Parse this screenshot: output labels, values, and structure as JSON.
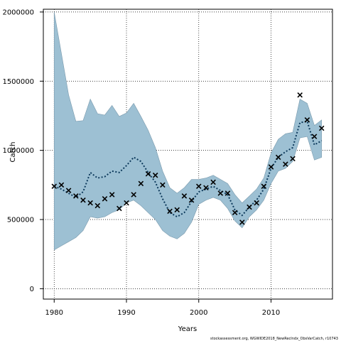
{
  "chart_data": {
    "type": "line",
    "title": "",
    "xlabel": "Years",
    "ylabel": "Catch",
    "xlim": [
      1978.5,
      2018.5
    ],
    "ylim": [
      -75000,
      2020000
    ],
    "grid": true,
    "x_ticks": [
      1980,
      1990,
      2000,
      2010
    ],
    "y_ticks": [
      0,
      500000,
      1000000,
      1500000,
      2000000
    ],
    "x_tick_labels": [
      "1980",
      "1990",
      "2000",
      "2010"
    ],
    "y_tick_labels": [
      "0",
      "500000",
      "1000000",
      "1500000",
      "2000000"
    ],
    "colors": {
      "band": "#9dc0d3",
      "band_edge": "#7a9aad",
      "estimate": "#0d3a5c",
      "observed": "#000000"
    },
    "series": [
      {
        "style": "confidence-band",
        "x": [
          1980,
          1981,
          1982,
          1983,
          1984,
          1985,
          1986,
          1987,
          1988,
          1989,
          1990,
          1991,
          1992,
          1993,
          1994,
          1995,
          1996,
          1997,
          1998,
          1999,
          2000,
          2001,
          2002,
          2003,
          2004,
          2005,
          2006,
          2007,
          2008,
          2009,
          2010,
          2011,
          2012,
          2013,
          2014,
          2015,
          2016,
          2017
        ],
        "lower": [
          280000,
          310000,
          340000,
          370000,
          420000,
          520000,
          510000,
          520000,
          550000,
          570000,
          620000,
          640000,
          600000,
          550000,
          500000,
          420000,
          380000,
          360000,
          400000,
          480000,
          610000,
          640000,
          660000,
          640000,
          580000,
          490000,
          440000,
          520000,
          570000,
          640000,
          760000,
          850000,
          870000,
          920000,
          1090000,
          1100000,
          930000,
          950000
        ],
        "upper": [
          2000000,
          1700000,
          1400000,
          1210000,
          1215000,
          1370000,
          1265000,
          1255000,
          1325000,
          1245000,
          1270000,
          1340000,
          1245000,
          1145000,
          1020000,
          850000,
          730000,
          690000,
          730000,
          790000,
          790000,
          800000,
          820000,
          790000,
          760000,
          680000,
          620000,
          670000,
          720000,
          800000,
          980000,
          1080000,
          1120000,
          1130000,
          1370000,
          1340000,
          1180000,
          1220000
        ]
      },
      {
        "style": "dotted-line",
        "x": [
          1980,
          1981,
          1982,
          1983,
          1984,
          1985,
          1986,
          1987,
          1988,
          1989,
          1990,
          1991,
          1992,
          1993,
          1994,
          1995,
          1996,
          1997,
          1998,
          1999,
          2000,
          2001,
          2002,
          2003,
          2004,
          2005,
          2006,
          2007,
          2008,
          2009,
          2010,
          2011,
          2012,
          2013,
          2014,
          2015,
          2016,
          2017
        ],
        "y": [
          740000,
          720000,
          690000,
          660000,
          700000,
          840000,
          800000,
          810000,
          850000,
          840000,
          890000,
          950000,
          920000,
          840000,
          770000,
          650000,
          550000,
          520000,
          550000,
          630000,
          700000,
          720000,
          740000,
          710000,
          680000,
          570000,
          530000,
          590000,
          640000,
          720000,
          870000,
          950000,
          990000,
          1020000,
          1200000,
          1210000,
          1040000,
          1070000
        ]
      },
      {
        "style": "x-markers",
        "x": [
          1980,
          1981,
          1982,
          1983,
          1984,
          1985,
          1986,
          1987,
          1988,
          1989,
          1990,
          1991,
          1992,
          1993,
          1994,
          1995,
          1996,
          1997,
          1998,
          1999,
          2000,
          2001,
          2002,
          2003,
          2004,
          2005,
          2006,
          2007,
          2008,
          2009,
          2010,
          2011,
          2012,
          2013,
          2014,
          2015,
          2016,
          2017
        ],
        "y": [
          740000,
          750000,
          710000,
          670000,
          640000,
          620000,
          600000,
          650000,
          680000,
          580000,
          620000,
          680000,
          760000,
          830000,
          820000,
          750000,
          560000,
          570000,
          670000,
          640000,
          740000,
          730000,
          770000,
          690000,
          690000,
          550000,
          480000,
          590000,
          620000,
          740000,
          880000,
          950000,
          900000,
          940000,
          1400000,
          1220000,
          1100000,
          1160000
        ]
      }
    ],
    "footnote": "stockassessment.org, WGWIDE2018_NewRecIndx_ObsVarCatch, r10743"
  }
}
